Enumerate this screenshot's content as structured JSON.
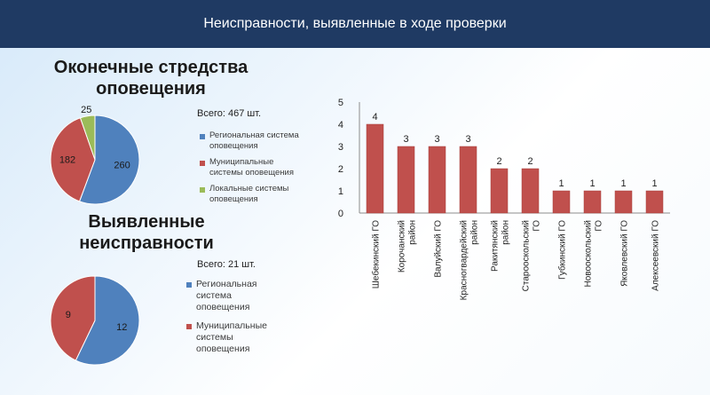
{
  "header": {
    "title": "Неисправности, выявленные в ходе проверки"
  },
  "section1": {
    "title": "Оконечные стредства оповещения",
    "total": "Всего: 467 шт."
  },
  "section2": {
    "title": "Выявленные неисправности",
    "total": "Всего: 21 шт."
  },
  "chart_data": [
    {
      "type": "pie",
      "title": "Оконечные стредства оповещения",
      "categories": [
        "Региональная система оповещения",
        "Муниципальные системы оповещения",
        "Локальные системы оповещения"
      ],
      "values": [
        260,
        182,
        25
      ],
      "colors": [
        "#4f81bd",
        "#c0504d",
        "#9bbb59"
      ],
      "legend": "right"
    },
    {
      "type": "pie",
      "title": "Выявленные неисправности",
      "categories": [
        "Региональная система оповещения",
        "Муниципальные системы оповещения"
      ],
      "values": [
        12,
        9
      ],
      "colors": [
        "#4f81bd",
        "#c0504d"
      ],
      "legend": "right"
    },
    {
      "type": "bar",
      "categories": [
        "Шебекинский ГО",
        "Корочанский район",
        "Валуйский ГО",
        "Красногвардейский район",
        "Ракитянский район",
        "Старооскольский ГО",
        "Губкинский ГО",
        "Новооскольский ГО",
        "Яковлевский ГО",
        "Алексеевский ГО"
      ],
      "values": [
        4,
        3,
        3,
        3,
        2,
        2,
        1,
        1,
        1,
        1
      ],
      "ylim": [
        0,
        5
      ],
      "yticks": [
        0,
        1,
        2,
        3,
        4,
        5
      ],
      "color": "#c0504d",
      "grid": false,
      "xlabel": "",
      "ylabel": ""
    }
  ]
}
